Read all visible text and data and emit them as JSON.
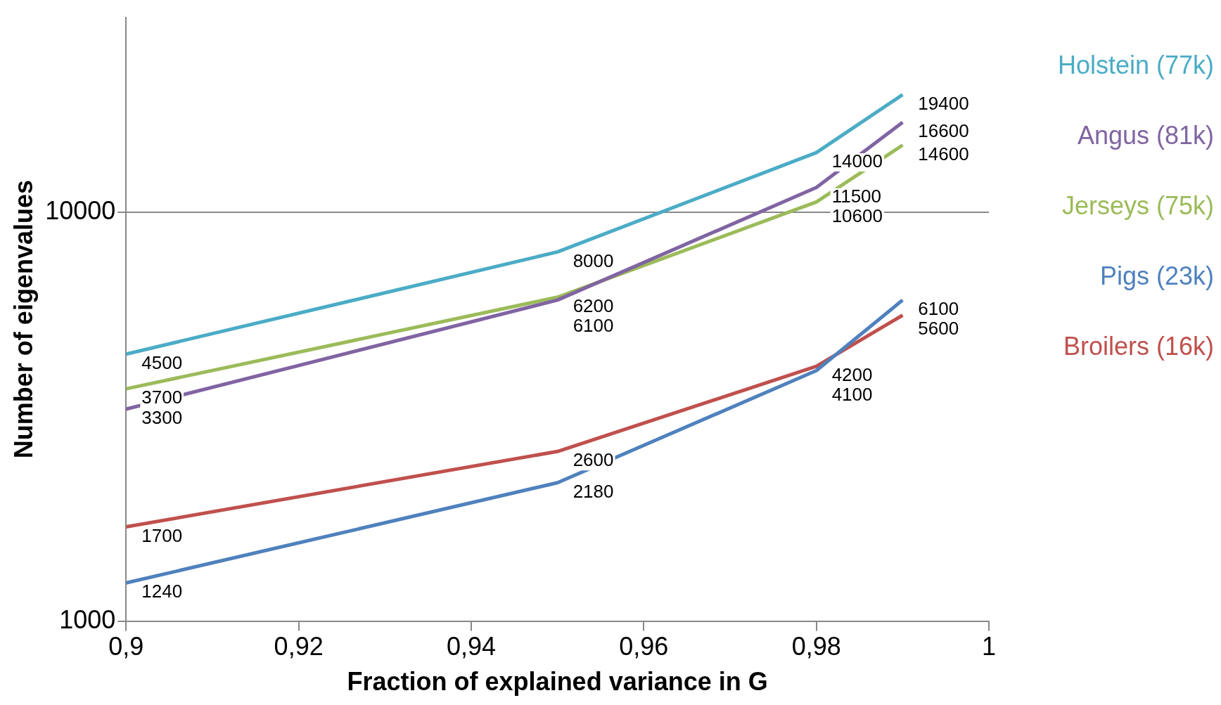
{
  "chart_data": {
    "type": "line",
    "xlabel": "Fraction of explained variance in G",
    "ylabel": "Number of eigenvalues",
    "x": [
      0.9,
      0.95,
      0.98,
      0.99
    ],
    "series": [
      {
        "name": "Holstein (77k)",
        "color": "#4bacc6",
        "values": [
          4500,
          8000,
          14000,
          19400
        ]
      },
      {
        "name": "Angus (81k)",
        "color": "#8064a2",
        "values": [
          3300,
          6100,
          11500,
          16600
        ]
      },
      {
        "name": "Jerseys (75k)",
        "color": "#9bbb59",
        "values": [
          3700,
          6200,
          10600,
          14600
        ]
      },
      {
        "name": "Pigs (23k)",
        "color": "#4f81bd",
        "values": [
          1240,
          2180,
          4100,
          6100
        ]
      },
      {
        "name": "Broilers (16k)",
        "color": "#c0504d",
        "values": [
          1700,
          2600,
          4200,
          5600
        ]
      }
    ],
    "log": "y",
    "xlim": [
      0.9,
      1
    ],
    "xticks": [
      {
        "value": 0.9,
        "label": "0,9"
      },
      {
        "value": 0.92,
        "label": "0,92"
      },
      {
        "value": 0.94,
        "label": "0,94"
      },
      {
        "value": 0.96,
        "label": "0,96"
      },
      {
        "value": 0.98,
        "label": "0,98"
      },
      {
        "value": 1,
        "label": "1"
      }
    ],
    "ylim": [
      1000,
      30000
    ],
    "yticks": [
      1000,
      10000
    ],
    "grid": "y",
    "legend": "right",
    "data_labels": true,
    "marker": "none",
    "line_style": "solid"
  }
}
